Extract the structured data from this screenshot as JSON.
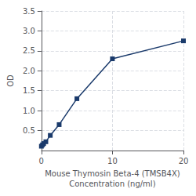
{
  "chart_data": {
    "type": "line",
    "x": [
      0,
      0.156,
      0.312,
      0.625,
      1.25,
      2.5,
      5,
      10,
      20
    ],
    "values": [
      0.108,
      0.142,
      0.175,
      0.22,
      0.38,
      0.65,
      1.3,
      2.3,
      2.75
    ],
    "color": "#1a3a6b",
    "marker": "square",
    "xlabel": "Mouse Thymosin Beta-4 (TMSB4X)\nConcentration (ng/ml)",
    "ylabel": "OD",
    "xlim": [
      0,
      20
    ],
    "xticks": [
      0,
      10,
      20
    ],
    "ylim": [
      0,
      3.5
    ],
    "yticks": [
      0.5,
      {
        "value": 1.0,
        "label": "1.0"
      },
      1.5,
      {
        "value": 2.0,
        "label": "2.0"
      },
      2.5,
      {
        "value": 3.0,
        "label": "3.0"
      },
      3.5
    ],
    "grid": true
  }
}
